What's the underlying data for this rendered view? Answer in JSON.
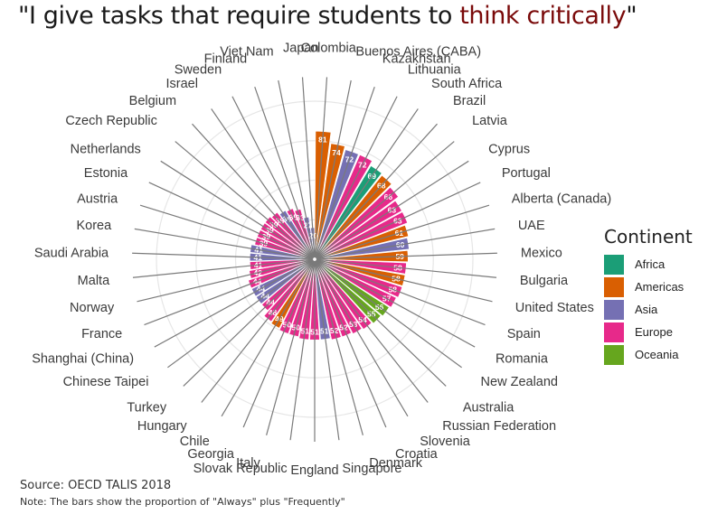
{
  "title": {
    "prefix": "\"I give tasks that require students to ",
    "highlight": "think critically",
    "suffix": "\"",
    "highlight_color": "#7a0a0a"
  },
  "legend": {
    "title": "Continent",
    "placement": "right",
    "items": [
      {
        "label": "Africa",
        "color": "#1b9e77"
      },
      {
        "label": "Americas",
        "color": "#d95f02"
      },
      {
        "label": "Asia",
        "color": "#7570b3"
      },
      {
        "label": "Europe",
        "color": "#e7298a"
      },
      {
        "label": "Oceania",
        "color": "#66a61e"
      }
    ]
  },
  "source": "Source: OECD TALIS 2018",
  "note": "Note: The bars show the proportion of \"Always\" plus \"Frequently\"",
  "chart_data": {
    "type": "bar",
    "coord": "polar",
    "grid": true,
    "ylim": [
      0,
      100
    ],
    "categories": [
      "Colombia",
      "Buenos Aires (CABA)",
      "Kazakhstan",
      "Lithuania",
      "South Africa",
      "Brazil",
      "Latvia",
      "Cyprus",
      "Portugal",
      "Alberta (Canada)",
      "UAE",
      "Mexico",
      "Bulgaria",
      "United States",
      "Spain",
      "Romania",
      "New Zealand",
      "Australia",
      "Russian Federation",
      "Slovenia",
      "Croatia",
      "Denmark",
      "Singapore",
      "England",
      "Slovak Republic",
      "Italy",
      "Georgia",
      "Chile",
      "Hungary",
      "Turkey",
      "Chinese Taipei",
      "Shanghai (China)",
      "France",
      "Norway",
      "Malta",
      "Saudi Arabia",
      "Korea",
      "Austria",
      "Estonia",
      "Netherlands",
      "Czech Republic",
      "Belgium",
      "Israel",
      "Sweden",
      "Finland",
      "Viet Nam",
      "Japan"
    ],
    "values": [
      81,
      74,
      72,
      72,
      69,
      68,
      66,
      63,
      63,
      61,
      60,
      59,
      58,
      58,
      58,
      57,
      56,
      55,
      54,
      53,
      52,
      52,
      51,
      51,
      51,
      50,
      50,
      49,
      48,
      44,
      44,
      44,
      44,
      42,
      41,
      41,
      41,
      39,
      39,
      39,
      39,
      38,
      36,
      35,
      33,
      27,
      20
    ],
    "continents": [
      "Americas",
      "Americas",
      "Asia",
      "Europe",
      "Africa",
      "Americas",
      "Europe",
      "Europe",
      "Europe",
      "Americas",
      "Asia",
      "Americas",
      "Europe",
      "Americas",
      "Europe",
      "Europe",
      "Oceania",
      "Oceania",
      "Europe",
      "Europe",
      "Europe",
      "Europe",
      "Asia",
      "Europe",
      "Europe",
      "Europe",
      "Europe",
      "Americas",
      "Europe",
      "Europe",
      "Asia",
      "Asia",
      "Europe",
      "Europe",
      "Europe",
      "Asia",
      "Asia",
      "Europe",
      "Europe",
      "Europe",
      "Europe",
      "Europe",
      "Asia",
      "Europe",
      "Europe",
      "Asia",
      "Asia"
    ]
  }
}
